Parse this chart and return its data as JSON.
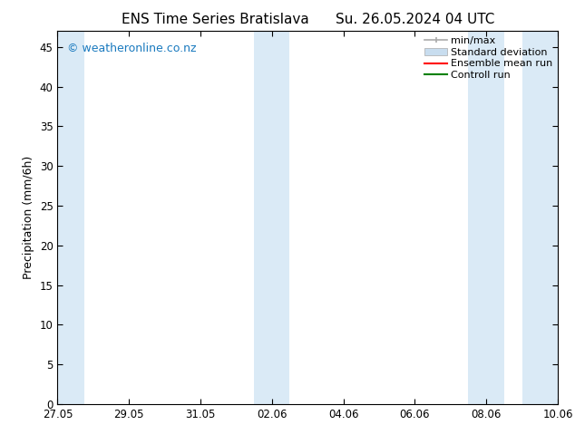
{
  "title": "ENS Time Series Bratislava      Su. 26.05.2024 04 UTC",
  "ylabel": "Precipitation (mm/6h)",
  "ylim": [
    0,
    47
  ],
  "yticks": [
    0,
    5,
    10,
    15,
    20,
    25,
    30,
    35,
    40,
    45
  ],
  "xtick_labels": [
    "27.05",
    "29.05",
    "31.05",
    "02.06",
    "04.06",
    "06.06",
    "08.06",
    "10.06"
  ],
  "xtick_positions": [
    0,
    2,
    4,
    6,
    8,
    10,
    12,
    14
  ],
  "x_min": 0.0,
  "x_max": 14.0,
  "background_color": "#ffffff",
  "shaded_band_color": "#daeaf6",
  "shaded_regions": [
    [
      0.0,
      0.75
    ],
    [
      5.5,
      6.5
    ],
    [
      11.5,
      12.5
    ],
    [
      13.0,
      14.0
    ]
  ],
  "watermark_text": "© weatheronline.co.nz",
  "watermark_color": "#1a7abf",
  "watermark_fontsize": 9,
  "legend_fontsize": 8,
  "title_fontsize": 11,
  "axis_label_fontsize": 9,
  "tick_fontsize": 8.5
}
